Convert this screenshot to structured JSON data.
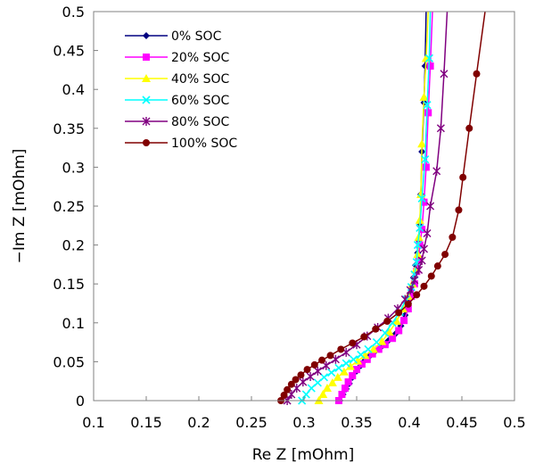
{
  "chart_data": {
    "type": "line",
    "xlabel": "Re Z [mOhm]",
    "ylabel": "−Im Z [mOhm]",
    "xlim": [
      0.1,
      0.5
    ],
    "ylim": [
      0,
      0.5
    ],
    "xticks": [
      "0.1",
      "0.15",
      "0.2",
      "0.25",
      "0.3",
      "0.35",
      "0.4",
      "0.45",
      "0.5"
    ],
    "yticks": [
      "0",
      "0.05",
      "0.1",
      "0.15",
      "0.2",
      "0.25",
      "0.3",
      "0.35",
      "0.4",
      "0.45",
      "0.5"
    ],
    "grid": false,
    "legend_position": "top-left inside",
    "series": [
      {
        "name": "0% SOC",
        "color": "#000080",
        "marker": "diamond",
        "points": [
          [
            0.334,
            0.0
          ],
          [
            0.337,
            0.008
          ],
          [
            0.34,
            0.015
          ],
          [
            0.343,
            0.022
          ],
          [
            0.346,
            0.03
          ],
          [
            0.35,
            0.038
          ],
          [
            0.354,
            0.045
          ],
          [
            0.358,
            0.052
          ],
          [
            0.363,
            0.058
          ],
          [
            0.368,
            0.064
          ],
          [
            0.374,
            0.07
          ],
          [
            0.38,
            0.077
          ],
          [
            0.387,
            0.086
          ],
          [
            0.392,
            0.096
          ],
          [
            0.396,
            0.11
          ],
          [
            0.399,
            0.126
          ],
          [
            0.402,
            0.142
          ],
          [
            0.404,
            0.158
          ],
          [
            0.406,
            0.174
          ],
          [
            0.408,
            0.19
          ],
          [
            0.409,
            0.206
          ],
          [
            0.41,
            0.225
          ],
          [
            0.411,
            0.265
          ],
          [
            0.412,
            0.32
          ],
          [
            0.414,
            0.383
          ],
          [
            0.415,
            0.43
          ],
          [
            0.416,
            0.5
          ]
        ]
      },
      {
        "name": "20% SOC",
        "color": "#ff00ff",
        "marker": "square",
        "points": [
          [
            0.333,
            0.0
          ],
          [
            0.336,
            0.008
          ],
          [
            0.339,
            0.016
          ],
          [
            0.342,
            0.024
          ],
          [
            0.346,
            0.032
          ],
          [
            0.35,
            0.04
          ],
          [
            0.355,
            0.047
          ],
          [
            0.36,
            0.053
          ],
          [
            0.365,
            0.06
          ],
          [
            0.371,
            0.066
          ],
          [
            0.377,
            0.072
          ],
          [
            0.384,
            0.08
          ],
          [
            0.39,
            0.09
          ],
          [
            0.395,
            0.103
          ],
          [
            0.399,
            0.118
          ],
          [
            0.402,
            0.134
          ],
          [
            0.405,
            0.15
          ],
          [
            0.407,
            0.166
          ],
          [
            0.409,
            0.182
          ],
          [
            0.41,
            0.2
          ],
          [
            0.412,
            0.22
          ],
          [
            0.414,
            0.255
          ],
          [
            0.416,
            0.3
          ],
          [
            0.418,
            0.37
          ],
          [
            0.42,
            0.43
          ],
          [
            0.422,
            0.5
          ]
        ]
      },
      {
        "name": "40% SOC",
        "color": "#ffff00",
        "marker": "triangle",
        "points": [
          [
            0.314,
            0.0
          ],
          [
            0.318,
            0.008
          ],
          [
            0.322,
            0.016
          ],
          [
            0.327,
            0.023
          ],
          [
            0.332,
            0.03
          ],
          [
            0.338,
            0.037
          ],
          [
            0.344,
            0.044
          ],
          [
            0.351,
            0.051
          ],
          [
            0.358,
            0.058
          ],
          [
            0.366,
            0.066
          ],
          [
            0.374,
            0.076
          ],
          [
            0.381,
            0.088
          ],
          [
            0.388,
            0.102
          ],
          [
            0.394,
            0.118
          ],
          [
            0.399,
            0.134
          ],
          [
            0.403,
            0.15
          ],
          [
            0.406,
            0.168
          ],
          [
            0.408,
            0.188
          ],
          [
            0.409,
            0.21
          ],
          [
            0.41,
            0.232
          ],
          [
            0.411,
            0.265
          ],
          [
            0.412,
            0.33
          ],
          [
            0.414,
            0.39
          ],
          [
            0.416,
            0.44
          ],
          [
            0.418,
            0.5
          ]
        ]
      },
      {
        "name": "60% SOC",
        "color": "#00ffff",
        "marker": "x",
        "points": [
          [
            0.298,
            0.0
          ],
          [
            0.302,
            0.008
          ],
          [
            0.307,
            0.016
          ],
          [
            0.313,
            0.023
          ],
          [
            0.319,
            0.03
          ],
          [
            0.326,
            0.036
          ],
          [
            0.333,
            0.042
          ],
          [
            0.34,
            0.048
          ],
          [
            0.347,
            0.053
          ],
          [
            0.354,
            0.059
          ],
          [
            0.361,
            0.066
          ],
          [
            0.369,
            0.075
          ],
          [
            0.377,
            0.087
          ],
          [
            0.384,
            0.1
          ],
          [
            0.391,
            0.114
          ],
          [
            0.397,
            0.13
          ],
          [
            0.402,
            0.146
          ],
          [
            0.405,
            0.162
          ],
          [
            0.407,
            0.178
          ],
          [
            0.408,
            0.2
          ],
          [
            0.41,
            0.222
          ],
          [
            0.412,
            0.26
          ],
          [
            0.415,
            0.31
          ],
          [
            0.417,
            0.38
          ],
          [
            0.419,
            0.44
          ],
          [
            0.42,
            0.5
          ]
        ]
      },
      {
        "name": "80% SOC",
        "color": "#800080",
        "marker": "star",
        "points": [
          [
            0.284,
            0.0
          ],
          [
            0.288,
            0.008
          ],
          [
            0.293,
            0.016
          ],
          [
            0.299,
            0.024
          ],
          [
            0.306,
            0.031
          ],
          [
            0.313,
            0.038
          ],
          [
            0.321,
            0.045
          ],
          [
            0.33,
            0.053
          ],
          [
            0.34,
            0.062
          ],
          [
            0.35,
            0.072
          ],
          [
            0.36,
            0.083
          ],
          [
            0.37,
            0.094
          ],
          [
            0.38,
            0.106
          ],
          [
            0.389,
            0.118
          ],
          [
            0.396,
            0.13
          ],
          [
            0.401,
            0.142
          ],
          [
            0.405,
            0.155
          ],
          [
            0.409,
            0.168
          ],
          [
            0.412,
            0.18
          ],
          [
            0.414,
            0.195
          ],
          [
            0.417,
            0.215
          ],
          [
            0.42,
            0.25
          ],
          [
            0.426,
            0.295
          ],
          [
            0.43,
            0.35
          ],
          [
            0.433,
            0.42
          ],
          [
            0.436,
            0.5
          ]
        ]
      },
      {
        "name": "100% SOC",
        "color": "#800000",
        "marker": "circle",
        "points": [
          [
            0.278,
            0.0
          ],
          [
            0.281,
            0.007
          ],
          [
            0.284,
            0.014
          ],
          [
            0.288,
            0.021
          ],
          [
            0.292,
            0.027
          ],
          [
            0.297,
            0.033
          ],
          [
            0.303,
            0.04
          ],
          [
            0.31,
            0.046
          ],
          [
            0.317,
            0.052
          ],
          [
            0.325,
            0.058
          ],
          [
            0.335,
            0.066
          ],
          [
            0.346,
            0.074
          ],
          [
            0.357,
            0.082
          ],
          [
            0.368,
            0.092
          ],
          [
            0.379,
            0.102
          ],
          [
            0.39,
            0.113
          ],
          [
            0.399,
            0.124
          ],
          [
            0.407,
            0.136
          ],
          [
            0.414,
            0.147
          ],
          [
            0.421,
            0.16
          ],
          [
            0.427,
            0.173
          ],
          [
            0.434,
            0.188
          ],
          [
            0.441,
            0.21
          ],
          [
            0.447,
            0.245
          ],
          [
            0.451,
            0.287
          ],
          [
            0.457,
            0.35
          ],
          [
            0.464,
            0.42
          ],
          [
            0.472,
            0.5
          ]
        ]
      }
    ]
  }
}
